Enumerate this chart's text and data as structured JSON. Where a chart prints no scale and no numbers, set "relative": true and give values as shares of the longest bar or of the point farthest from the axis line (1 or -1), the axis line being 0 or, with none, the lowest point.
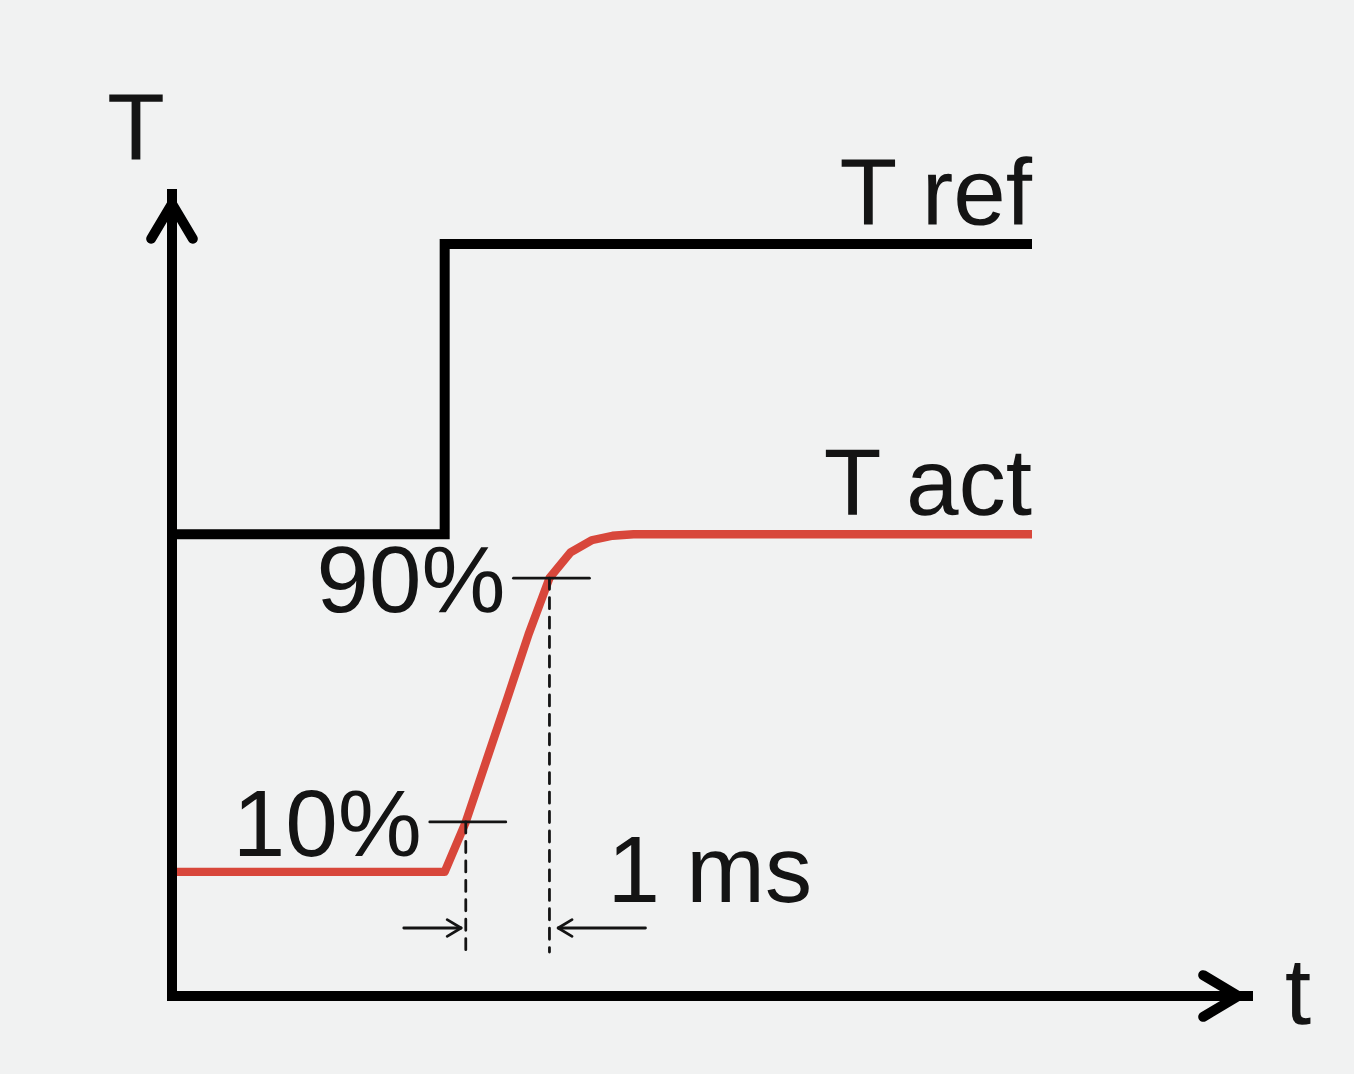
{
  "chart_data": {
    "type": "line",
    "xlabel": "t",
    "ylabel": "T",
    "relative": true,
    "categories": [
      null,
      null,
      null,
      null,
      null,
      null,
      null,
      null,
      null,
      null,
      null,
      null,
      null,
      null,
      null,
      null,
      null,
      null,
      null,
      null,
      null,
      null,
      null,
      null,
      null,
      null,
      null,
      null,
      null,
      null,
      null,
      null,
      null,
      null,
      null,
      null,
      null,
      null,
      null,
      null,
      null,
      null
    ],
    "series": [
      {
        "name": "T ref",
        "type": "step",
        "color": "#000000",
        "values": [
          0.614,
          0.614,
          0.614,
          0.614,
          0.614,
          0.614,
          0.614,
          0.614,
          0.614,
          0.614,
          0.614,
          0.614,
          0.614,
          1,
          1,
          1,
          1,
          1,
          1,
          1,
          1,
          1,
          1,
          1,
          1,
          1,
          1,
          1,
          1,
          1,
          1,
          1,
          1,
          1,
          1,
          1,
          1,
          1,
          1,
          1,
          1,
          1
        ]
      },
      {
        "name": "T act",
        "color": "#d8473b",
        "values": [
          0.165,
          0.165,
          0.165,
          0.165,
          0.165,
          0.165,
          0.165,
          0.165,
          0.165,
          0.165,
          0.165,
          0.165,
          0.165,
          0.165,
          0.231,
          0.314,
          0.397,
          0.481,
          0.556,
          0.59,
          0.606,
          0.612,
          0.614,
          0.614,
          0.614,
          0.614,
          0.614,
          0.614,
          0.614,
          0.614,
          0.614,
          0.614,
          0.614,
          0.614,
          0.614,
          0.614,
          0.614,
          0.614,
          0.614,
          0.614,
          0.614,
          0.614
        ]
      }
    ],
    "annotations": [
      "10%",
      "90%",
      "1 ms"
    ]
  }
}
